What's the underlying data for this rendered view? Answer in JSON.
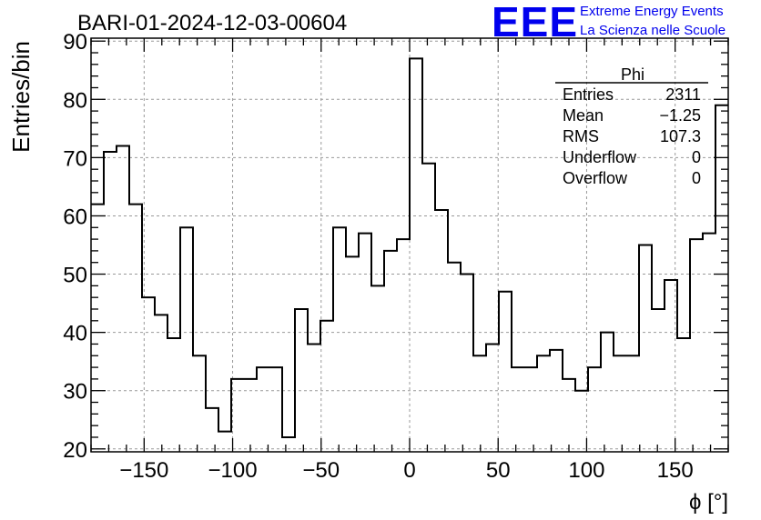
{
  "header": {
    "title": "BARI-01-2024-12-03-00604",
    "logo": "EEE",
    "logo_line1": "Extreme Energy Events",
    "logo_line2": "La Scienza nelle Scuole"
  },
  "stats": {
    "name": "Phi",
    "rows": [
      {
        "label": "Entries",
        "value": "2311"
      },
      {
        "label": "Mean",
        "value": "−1.25"
      },
      {
        "label": "RMS",
        "value": "107.3"
      },
      {
        "label": "Underflow",
        "value": "0"
      },
      {
        "label": "Overflow",
        "value": "0"
      }
    ]
  },
  "colors": {
    "line": "#000000",
    "grid": "#999999",
    "logo": "#0000ee"
  },
  "chart_data": {
    "type": "histogram",
    "title": "BARI-01-2024-12-03-00604",
    "xlabel": "ϕ [°]",
    "ylabel": "Entries/bin",
    "xlim": [
      -180,
      180
    ],
    "ylim": [
      19.5,
      90.5
    ],
    "bin_width": 7.2,
    "x_ticks": [
      -150,
      -100,
      -50,
      0,
      50,
      100,
      150
    ],
    "x_tick_labels": [
      "−150",
      "−100",
      "−50",
      "0",
      "50",
      "100",
      "150"
    ],
    "y_ticks": [
      20,
      30,
      40,
      50,
      60,
      70,
      80,
      90
    ],
    "y_tick_labels": [
      "20",
      "30",
      "40",
      "50",
      "60",
      "70",
      "80",
      "90"
    ],
    "grid": true,
    "values": [
      62,
      71,
      72,
      62,
      46,
      43,
      39,
      58,
      36,
      27,
      23,
      32,
      32,
      34,
      34,
      22,
      44,
      38,
      42,
      58,
      53,
      57,
      48,
      54,
      56,
      87,
      69,
      61,
      52,
      50,
      36,
      38,
      47,
      34,
      34,
      36,
      37,
      32,
      30,
      34,
      40,
      36,
      36,
      55,
      44,
      49,
      39,
      56,
      57,
      79
    ]
  }
}
